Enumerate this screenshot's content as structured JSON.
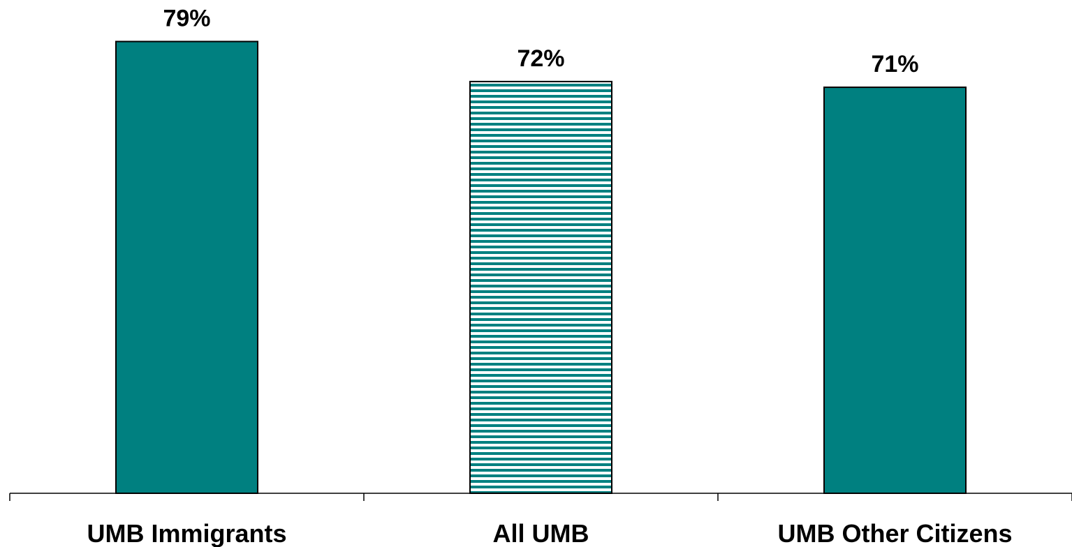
{
  "colors": {
    "bar": "#008080",
    "stripe_gap": "#ffffff",
    "outline": "#000000",
    "axis": "#000000"
  },
  "chart_data": {
    "type": "bar",
    "categories": [
      "UMB Immigrants",
      "All UMB",
      "UMB Other Citizens"
    ],
    "values": [
      79,
      72,
      71
    ],
    "data_labels": [
      "79%",
      "72%",
      "71%"
    ],
    "fill_styles": [
      "solid",
      "horizontal-stripes",
      "solid"
    ],
    "ylim": [
      0,
      80
    ],
    "grid": false,
    "legend": "none",
    "y_axis_visible": false
  }
}
